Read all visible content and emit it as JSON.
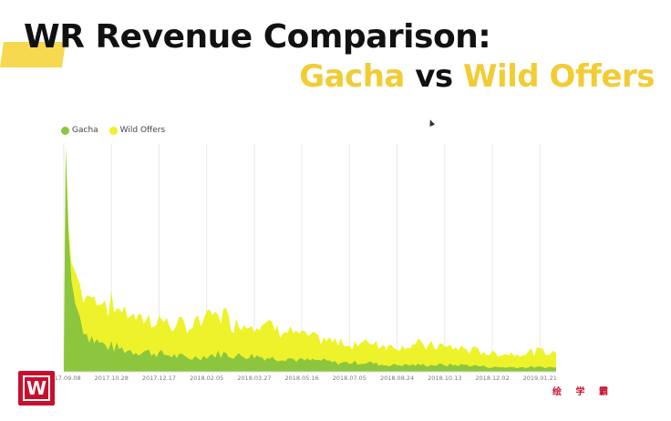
{
  "slide": {
    "title_line1": "WR Revenue Comparison:",
    "title_gacha": "Gacha",
    "title_vs": "vs",
    "title_wild": "Wild Offers",
    "watermark": "绘 学 霸"
  },
  "colors": {
    "gacha": "#8cc63f",
    "wild_offers": "#eef22a",
    "title_accent": "#f2cc35",
    "highlight": "#f6d94f",
    "logo": "#c8102e"
  },
  "chart_data": {
    "type": "area",
    "stacked": true,
    "legend": [
      "Gacha",
      "Wild Offers"
    ],
    "legend_position": "top-left",
    "grid": true,
    "x_ticks": [
      "2017.09.08",
      "2017.10.28",
      "2017.12.17",
      "2018.02.05",
      "2018.03.27",
      "2018.05.16",
      "2018.07.05",
      "2018.08.24",
      "2018.10.13",
      "2018.12.02",
      "2019.01.21"
    ],
    "x_start": "2017.09.08",
    "x_end": "2019.02.07",
    "y_units": "relative revenue (no axis printed)",
    "y_max": 100,
    "points": [
      {
        "x": "2017.09.08",
        "gacha": 1,
        "wild": 0
      },
      {
        "x": "2017.09.10",
        "gacha": 98,
        "wild": 2
      },
      {
        "x": "2017.09.13",
        "gacha": 60,
        "wild": 4
      },
      {
        "x": "2017.09.16",
        "gacha": 40,
        "wild": 8
      },
      {
        "x": "2017.09.20",
        "gacha": 30,
        "wild": 14
      },
      {
        "x": "2017.09.25",
        "gacha": 24,
        "wild": 14
      },
      {
        "x": "2017.10.02",
        "gacha": 17,
        "wild": 17
      },
      {
        "x": "2017.10.10",
        "gacha": 14,
        "wild": 18
      },
      {
        "x": "2017.10.18",
        "gacha": 12,
        "wild": 20
      },
      {
        "x": "2017.10.28",
        "gacha": 11,
        "wild": 18
      },
      {
        "x": "2017.11.08",
        "gacha": 10,
        "wild": 17
      },
      {
        "x": "2017.11.20",
        "gacha": 9,
        "wild": 16
      },
      {
        "x": "2017.12.01",
        "gacha": 9,
        "wild": 14
      },
      {
        "x": "2017.12.17",
        "gacha": 8,
        "wild": 15
      },
      {
        "x": "2018.01.02",
        "gacha": 7,
        "wild": 13
      },
      {
        "x": "2018.01.18",
        "gacha": 6,
        "wild": 14
      },
      {
        "x": "2018.02.05",
        "gacha": 7,
        "wild": 17
      },
      {
        "x": "2018.02.20",
        "gacha": 8,
        "wild": 18
      },
      {
        "x": "2018.03.08",
        "gacha": 7,
        "wild": 14
      },
      {
        "x": "2018.03.27",
        "gacha": 7,
        "wild": 15
      },
      {
        "x": "2018.04.15",
        "gacha": 6,
        "wild": 14
      },
      {
        "x": "2018.05.01",
        "gacha": 6,
        "wild": 12
      },
      {
        "x": "2018.05.16",
        "gacha": 5,
        "wild": 11
      },
      {
        "x": "2018.06.05",
        "gacha": 5,
        "wild": 9
      },
      {
        "x": "2018.06.20",
        "gacha": 4,
        "wild": 9
      },
      {
        "x": "2018.07.05",
        "gacha": 4,
        "wild": 8
      },
      {
        "x": "2018.07.25",
        "gacha": 4,
        "wild": 9
      },
      {
        "x": "2018.08.10",
        "gacha": 3,
        "wild": 9
      },
      {
        "x": "2018.08.24",
        "gacha": 3,
        "wild": 8
      },
      {
        "x": "2018.09.15",
        "gacha": 3,
        "wild": 9
      },
      {
        "x": "2018.10.13",
        "gacha": 3,
        "wild": 8
      },
      {
        "x": "2018.11.05",
        "gacha": 3,
        "wild": 7
      },
      {
        "x": "2018.12.02",
        "gacha": 2,
        "wild": 6
      },
      {
        "x": "2018.12.25",
        "gacha": 2,
        "wild": 6
      },
      {
        "x": "2019.01.21",
        "gacha": 2,
        "wild": 7
      },
      {
        "x": "2019.02.07",
        "gacha": 2,
        "wild": 6
      }
    ]
  }
}
